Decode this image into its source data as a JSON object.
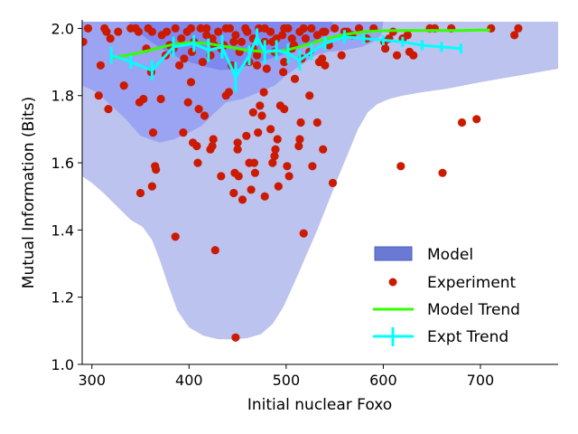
{
  "chart_data": {
    "type": "scatter",
    "xlabel": "Initial nuclear Foxo",
    "ylabel": "Mutual Information (Bits)",
    "xlim": [
      290,
      780
    ],
    "ylim": [
      1.0,
      2.02
    ],
    "xticks": [
      300,
      400,
      500,
      600,
      700
    ],
    "yticks": [
      1.0,
      1.2,
      1.4,
      1.6,
      1.8,
      2.0
    ],
    "xtick_labels": [
      "300",
      "400",
      "500",
      "600",
      "700"
    ],
    "ytick_labels": [
      "1.0",
      "1.2",
      "1.4",
      "1.6",
      "1.8",
      "2.0"
    ],
    "grid": false,
    "legend_position": "lower-right",
    "legend": {
      "model": "Model",
      "experiment": "Experiment",
      "model_trend": "Model Trend",
      "expt_trend": "Expt Trend"
    },
    "colors": {
      "density_outer": "#bcc3ef",
      "density_mid": "#9ba4f3",
      "density_inner": "#7f88f0",
      "model_patch": "#6a79d4",
      "experiment": "#cc1a00",
      "model_trend": "#33ff00",
      "expt_trend": "#00ffff"
    },
    "density_regions": {
      "outer": [
        [
          290,
          2.02
        ],
        [
          780,
          2.02
        ],
        [
          780,
          1.88
        ],
        [
          740,
          1.86
        ],
        [
          700,
          1.84
        ],
        [
          665,
          1.82
        ],
        [
          640,
          1.81
        ],
        [
          620,
          1.8
        ],
        [
          606,
          1.79
        ],
        [
          594,
          1.775
        ],
        [
          584,
          1.75
        ],
        [
          574,
          1.7
        ],
        [
          564,
          1.63
        ],
        [
          554,
          1.56
        ],
        [
          543,
          1.48
        ],
        [
          532,
          1.4
        ],
        [
          520,
          1.32
        ],
        [
          508,
          1.24
        ],
        [
          497,
          1.17
        ],
        [
          486,
          1.12
        ],
        [
          474,
          1.09
        ],
        [
          460,
          1.078
        ],
        [
          445,
          1.074
        ],
        [
          430,
          1.075
        ],
        [
          415,
          1.085
        ],
        [
          400,
          1.11
        ],
        [
          388,
          1.16
        ],
        [
          378,
          1.24
        ],
        [
          370,
          1.31
        ],
        [
          362,
          1.37
        ],
        [
          352,
          1.41
        ],
        [
          340,
          1.43
        ],
        [
          326,
          1.47
        ],
        [
          312,
          1.51
        ],
        [
          300,
          1.54
        ],
        [
          290,
          1.56
        ]
      ],
      "mid": [
        [
          290,
          2.02
        ],
        [
          600,
          2.02
        ],
        [
          598,
          1.98
        ],
        [
          590,
          1.96
        ],
        [
          578,
          1.945
        ],
        [
          560,
          1.935
        ],
        [
          544,
          1.93
        ],
        [
          530,
          1.92
        ],
        [
          520,
          1.9
        ],
        [
          510,
          1.88
        ],
        [
          500,
          1.86
        ],
        [
          488,
          1.83
        ],
        [
          472,
          1.81
        ],
        [
          455,
          1.79
        ],
        [
          438,
          1.78
        ],
        [
          425,
          1.745
        ],
        [
          413,
          1.71
        ],
        [
          400,
          1.69
        ],
        [
          385,
          1.67
        ],
        [
          370,
          1.66
        ],
        [
          350,
          1.68
        ],
        [
          335,
          1.73
        ],
        [
          320,
          1.77
        ],
        [
          305,
          1.81
        ],
        [
          290,
          1.83
        ]
      ],
      "inner": [
        [
          338,
          2.02
        ],
        [
          548,
          2.02
        ],
        [
          548,
          1.995
        ],
        [
          538,
          1.975
        ],
        [
          524,
          1.955
        ],
        [
          510,
          1.94
        ],
        [
          495,
          1.92
        ],
        [
          478,
          1.905
        ],
        [
          462,
          1.89
        ],
        [
          448,
          1.878
        ],
        [
          432,
          1.876
        ],
        [
          414,
          1.888
        ],
        [
          398,
          1.902
        ],
        [
          384,
          1.92
        ],
        [
          372,
          1.94
        ],
        [
          360,
          1.962
        ],
        [
          350,
          1.985
        ],
        [
          342,
          2.0
        ]
      ]
    },
    "experiment_points": [
      [
        291,
        1.96
      ],
      [
        296,
        2.0
      ],
      [
        307,
        1.8
      ],
      [
        309,
        1.89
      ],
      [
        313,
        2.0
      ],
      [
        315,
        1.99
      ],
      [
        317,
        1.76
      ],
      [
        319,
        1.97
      ],
      [
        327,
        1.99
      ],
      [
        333,
        1.83
      ],
      [
        340,
        2.0
      ],
      [
        345,
        2.0
      ],
      [
        348,
        1.99
      ],
      [
        349,
        1.78
      ],
      [
        350,
        1.51
      ],
      [
        353,
        1.79
      ],
      [
        358,
        2.0
      ],
      [
        361,
        1.87
      ],
      [
        362,
        1.53
      ],
      [
        363,
        1.69
      ],
      [
        365,
        1.59
      ],
      [
        366,
        1.58
      ],
      [
        371,
        1.79
      ],
      [
        377,
        1.99
      ],
      [
        386,
        1.38
      ],
      [
        390,
        1.89
      ],
      [
        394,
        1.69
      ],
      [
        399,
        1.78
      ],
      [
        402,
        1.84
      ],
      [
        404,
        1.66
      ],
      [
        408,
        1.65
      ],
      [
        409,
        1.6
      ],
      [
        410,
        1.76
      ],
      [
        416,
        1.74
      ],
      [
        422,
        1.64
      ],
      [
        424,
        1.65
      ],
      [
        425,
        1.67
      ],
      [
        427,
        1.34
      ],
      [
        433,
        1.56
      ],
      [
        438,
        1.8
      ],
      [
        441,
        1.81
      ],
      [
        446,
        1.51
      ],
      [
        447,
        1.57
      ],
      [
        448,
        1.08
      ],
      [
        450,
        1.66
      ],
      [
        450,
        1.64
      ],
      [
        451,
        1.56
      ],
      [
        455,
        1.49
      ],
      [
        459,
        1.68
      ],
      [
        462,
        1.6
      ],
      [
        464,
        1.52
      ],
      [
        466,
        1.75
      ],
      [
        467,
        1.6
      ],
      [
        468,
        1.57
      ],
      [
        470,
        1.89
      ],
      [
        471,
        1.69
      ],
      [
        473,
        1.77
      ],
      [
        475,
        1.74
      ],
      [
        477,
        1.81
      ],
      [
        478,
        1.5
      ],
      [
        484,
        1.7
      ],
      [
        486,
        1.6
      ],
      [
        488,
        1.62
      ],
      [
        489,
        1.64
      ],
      [
        491,
        1.67
      ],
      [
        492,
        1.53
      ],
      [
        494,
        1.77
      ],
      [
        497,
        1.87
      ],
      [
        498,
        1.76
      ],
      [
        501,
        1.59
      ],
      [
        503,
        1.56
      ],
      [
        509,
        1.85
      ],
      [
        513,
        1.65
      ],
      [
        514,
        1.67
      ],
      [
        515,
        1.72
      ],
      [
        518,
        1.39
      ],
      [
        524,
        1.8
      ],
      [
        527,
        1.59
      ],
      [
        532,
        1.72
      ],
      [
        537,
        1.91
      ],
      [
        538,
        1.64
      ],
      [
        540,
        1.89
      ],
      [
        548,
        1.54
      ],
      [
        557,
        1.92
      ],
      [
        563,
        1.99
      ],
      [
        568,
        1.98
      ],
      [
        583,
        1.97
      ],
      [
        601,
        1.96
      ],
      [
        602,
        1.94
      ],
      [
        606,
        1.97
      ],
      [
        610,
        1.99
      ],
      [
        614,
        1.92
      ],
      [
        618,
        1.59
      ],
      [
        620,
        1.97
      ],
      [
        625,
        1.98
      ],
      [
        627,
        1.93
      ],
      [
        631,
        1.92
      ],
      [
        648,
        2.0
      ],
      [
        653,
        2.0
      ],
      [
        661,
        1.57
      ],
      [
        670,
        2.0
      ],
      [
        681,
        1.72
      ],
      [
        696,
        1.73
      ],
      [
        711,
        2.0
      ],
      [
        735,
        1.98
      ],
      [
        739,
        2.0
      ],
      [
        372,
        1.98
      ],
      [
        380,
        1.95
      ],
      [
        386,
        2.0
      ],
      [
        392,
        1.97
      ],
      [
        398,
        1.99
      ],
      [
        405,
        1.96
      ],
      [
        412,
        2.0
      ],
      [
        418,
        1.98
      ],
      [
        424,
        1.97
      ],
      [
        430,
        1.99
      ],
      [
        436,
        1.95
      ],
      [
        442,
        2.0
      ],
      [
        448,
        1.98
      ],
      [
        454,
        1.96
      ],
      [
        460,
        1.99
      ],
      [
        466,
        1.97
      ],
      [
        472,
        2.0
      ],
      [
        478,
        1.96
      ],
      [
        484,
        1.99
      ],
      [
        490,
        1.97
      ],
      [
        496,
        1.98
      ],
      [
        502,
        2.0
      ],
      [
        508,
        1.95
      ],
      [
        514,
        1.99
      ],
      [
        520,
        1.97
      ],
      [
        526,
        2.0
      ],
      [
        532,
        1.98
      ],
      [
        540,
        1.99
      ],
      [
        550,
        2.0
      ],
      [
        560,
        1.99
      ],
      [
        575,
        2.0
      ],
      [
        590,
        2.0
      ],
      [
        376,
        1.92
      ],
      [
        384,
        1.94
      ],
      [
        395,
        1.91
      ],
      [
        403,
        1.93
      ],
      [
        414,
        1.9
      ],
      [
        422,
        1.92
      ],
      [
        433,
        1.94
      ],
      [
        444,
        1.89
      ],
      [
        452,
        1.93
      ],
      [
        462,
        1.9
      ],
      [
        470,
        1.92
      ],
      [
        480,
        1.88
      ],
      [
        488,
        1.93
      ],
      [
        498,
        1.9
      ],
      [
        506,
        1.94
      ],
      [
        516,
        1.91
      ],
      [
        524,
        1.93
      ],
      [
        534,
        1.9
      ],
      [
        544,
        1.95
      ],
      [
        418,
        2.0
      ],
      [
        438,
        2.0
      ],
      [
        458,
        2.0
      ],
      [
        478,
        2.0
      ],
      [
        498,
        2.0
      ],
      [
        518,
        2.0
      ],
      [
        538,
        1.99
      ],
      [
        402,
        2.0
      ],
      [
        426,
        1.95
      ],
      [
        446,
        1.96
      ],
      [
        466,
        1.94
      ],
      [
        486,
        1.96
      ],
      [
        506,
        1.97
      ],
      [
        362,
        1.99
      ],
      [
        356,
        1.94
      ]
    ],
    "model_trend": {
      "x": [
        320,
        340,
        360,
        380,
        400,
        420,
        440,
        460,
        480,
        500,
        520,
        540,
        560,
        580,
        600,
        620,
        640,
        660,
        680,
        700,
        710
      ],
      "y": [
        1.912,
        1.922,
        1.935,
        1.95,
        1.958,
        1.955,
        1.945,
        1.935,
        1.93,
        1.935,
        1.95,
        1.968,
        1.982,
        1.99,
        1.993,
        1.994,
        1.994,
        1.994,
        1.994,
        1.995,
        1.995
      ]
    },
    "expt_trend": {
      "x": [
        320,
        340,
        362,
        384,
        405,
        420,
        434,
        448,
        462,
        470,
        478,
        490,
        502,
        514,
        526,
        540,
        560,
        580,
        600,
        620,
        640,
        660,
        680
      ],
      "y": [
        1.92,
        1.9,
        1.875,
        1.945,
        1.955,
        1.935,
        1.945,
        1.855,
        1.92,
        1.975,
        1.93,
        1.935,
        1.925,
        1.905,
        1.93,
        1.955,
        1.975,
        1.97,
        1.965,
        1.96,
        1.95,
        1.945,
        1.94
      ],
      "err": [
        0.025,
        0.02,
        0.03,
        0.03,
        0.025,
        0.035,
        0.035,
        0.045,
        0.03,
        0.025,
        0.035,
        0.03,
        0.03,
        0.03,
        0.025,
        0.02,
        0.02,
        0.015,
        0.015,
        0.015,
        0.015,
        0.015,
        0.015
      ]
    }
  }
}
